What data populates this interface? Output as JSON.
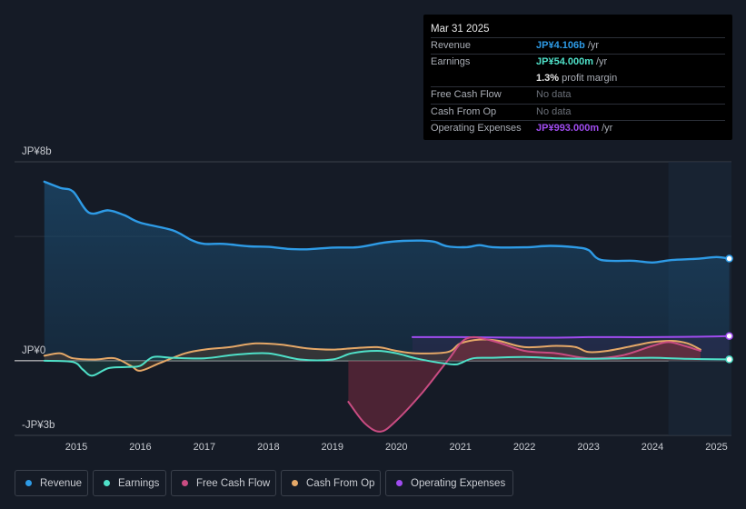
{
  "tooltip": {
    "date": "Mar 31 2025",
    "revenue": {
      "label": "Revenue",
      "value": "JP¥4.106b",
      "unit": "/yr"
    },
    "earnings": {
      "label": "Earnings",
      "value": "JP¥54.000m",
      "unit": "/yr"
    },
    "margin": {
      "value": "1.3%",
      "unit": "profit margin"
    },
    "fcf": {
      "label": "Free Cash Flow",
      "value": "No data"
    },
    "cfo": {
      "label": "Cash From Op",
      "value": "No data"
    },
    "opex": {
      "label": "Operating Expenses",
      "value": "JP¥993.000m",
      "unit": "/yr"
    }
  },
  "legend": {
    "revenue": "Revenue",
    "earnings": "Earnings",
    "fcf": "Free Cash Flow",
    "cfo": "Cash From Op",
    "opex": "Operating Expenses"
  },
  "colors": {
    "revenue": "#2e9be6",
    "earnings": "#4fe0c8",
    "fcf": "#c94c82",
    "cfo": "#e5a868",
    "opex": "#a04cf0",
    "background": "#151b26"
  },
  "chart_data": {
    "type": "line",
    "title": "",
    "xlabel": "",
    "ylabel": "",
    "ylim": [
      -3,
      8
    ],
    "unit": "JP¥ billions",
    "y_tick_labels": [
      "JP¥8b",
      "JP¥0",
      "-JP¥3b"
    ],
    "y_ticks": [
      8,
      0,
      -3
    ],
    "x_ticks": [
      2015,
      2016,
      2017,
      2018,
      2019,
      2020,
      2021,
      2022,
      2023,
      2024,
      2025
    ],
    "x_tick_labels": [
      "2015",
      "2016",
      "2017",
      "2018",
      "2019",
      "2020",
      "2021",
      "2022",
      "2023",
      "2024",
      "2025"
    ],
    "forecast_start": 2024.25,
    "series": [
      {
        "name": "Revenue",
        "key": "revenue",
        "x": [
          2014.5,
          2014.75,
          2014.95,
          2015.2,
          2015.5,
          2015.75,
          2016.0,
          2016.5,
          2016.8,
          2017.0,
          2017.3,
          2017.7,
          2018.0,
          2018.3,
          2018.6,
          2019.0,
          2019.4,
          2019.8,
          2020.1,
          2020.4,
          2020.6,
          2020.8,
          2021.1,
          2021.3,
          2021.5,
          2022.0,
          2022.4,
          2022.8,
          2023.0,
          2023.2,
          2023.7,
          2024.0,
          2024.3,
          2024.7,
          2025.0,
          2025.2
        ],
        "values": [
          7.2,
          6.95,
          6.8,
          5.95,
          6.05,
          5.85,
          5.55,
          5.25,
          4.85,
          4.7,
          4.7,
          4.6,
          4.58,
          4.5,
          4.48,
          4.55,
          4.57,
          4.75,
          4.82,
          4.83,
          4.78,
          4.6,
          4.57,
          4.65,
          4.57,
          4.56,
          4.62,
          4.56,
          4.45,
          4.05,
          4.02,
          3.95,
          4.05,
          4.1,
          4.17,
          4.106
        ]
      },
      {
        "name": "Earnings",
        "key": "earnings",
        "x": [
          2014.5,
          2014.95,
          2015.1,
          2015.25,
          2015.5,
          2015.8,
          2016.0,
          2016.2,
          2016.5,
          2017.0,
          2017.5,
          2018.0,
          2018.5,
          2019.0,
          2019.3,
          2019.7,
          2020.0,
          2020.3,
          2020.6,
          2020.9,
          2021.0,
          2021.2,
          2021.5,
          2022.0,
          2022.5,
          2023.0,
          2023.5,
          2024.0,
          2024.5,
          2025.0,
          2025.2
        ],
        "values": [
          0.0,
          -0.05,
          -0.35,
          -0.6,
          -0.3,
          -0.25,
          -0.2,
          0.15,
          0.12,
          0.1,
          0.25,
          0.3,
          0.05,
          0.05,
          0.3,
          0.4,
          0.3,
          0.1,
          -0.05,
          -0.15,
          -0.1,
          0.1,
          0.12,
          0.15,
          0.1,
          0.08,
          0.1,
          0.12,
          0.08,
          0.06,
          0.054
        ]
      },
      {
        "name": "Free Cash Flow",
        "key": "fcf",
        "x": [
          2019.25,
          2019.5,
          2019.75,
          2020.0,
          2020.4,
          2020.8,
          2021.1,
          2021.5,
          2022.0,
          2022.5,
          2023.0,
          2023.5,
          2024.0,
          2024.25,
          2024.5,
          2024.75
        ],
        "values": [
          -1.65,
          -2.5,
          -2.85,
          -2.4,
          -1.3,
          0.0,
          0.9,
          0.8,
          0.4,
          0.3,
          0.1,
          0.2,
          0.6,
          0.75,
          0.6,
          0.4
        ]
      },
      {
        "name": "Cash From Op",
        "key": "cfo",
        "x": [
          2014.5,
          2014.75,
          2014.95,
          2015.3,
          2015.6,
          2015.85,
          2016.0,
          2016.3,
          2016.7,
          2017.0,
          2017.4,
          2017.8,
          2018.2,
          2018.6,
          2019.0,
          2019.3,
          2019.7,
          2020.0,
          2020.3,
          2020.8,
          2021.0,
          2021.3,
          2021.6,
          2022.0,
          2022.5,
          2022.8,
          2023.0,
          2023.3,
          2023.7,
          2024.0,
          2024.3,
          2024.55,
          2024.75
        ],
        "values": [
          0.2,
          0.3,
          0.1,
          0.05,
          0.1,
          -0.2,
          -0.4,
          -0.1,
          0.3,
          0.45,
          0.55,
          0.7,
          0.65,
          0.5,
          0.45,
          0.5,
          0.55,
          0.4,
          0.3,
          0.35,
          0.7,
          0.85,
          0.8,
          0.55,
          0.6,
          0.55,
          0.35,
          0.4,
          0.6,
          0.75,
          0.8,
          0.7,
          0.45
        ]
      },
      {
        "name": "Operating Expenses",
        "key": "opex",
        "x": [
          2020.25,
          2020.6,
          2021.0,
          2021.5,
          2022.0,
          2022.5,
          2023.0,
          2023.5,
          2024.0,
          2024.5,
          2025.0,
          2025.2
        ],
        "values": [
          0.95,
          0.95,
          0.95,
          0.94,
          0.93,
          0.93,
          0.95,
          0.95,
          0.95,
          0.96,
          0.98,
          0.993
        ]
      }
    ]
  }
}
